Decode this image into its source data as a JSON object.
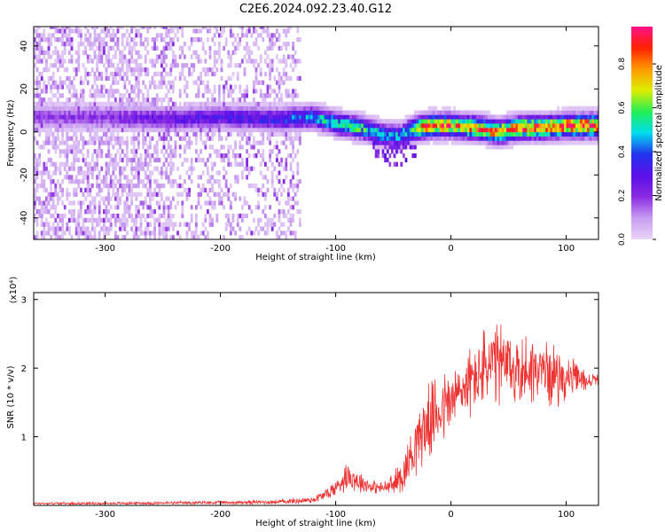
{
  "figure_title": "C2E6.2024.092.23.40.G12",
  "colors": {
    "snr_line": "#ee3333",
    "background": "#ffffff",
    "colormap": [
      "#e9d6f7",
      "#c89cf0",
      "#8a2be2",
      "#5a10e8",
      "#2233ee",
      "#00ddee",
      "#22ee55",
      "#ddee00",
      "#ff9900",
      "#ff2200",
      "#ff1188"
    ]
  },
  "chart_data": [
    {
      "type": "heatmap",
      "title": "C2E6.2024.092.23.40.G12",
      "xlabel": "Height of straight line (km)",
      "ylabel": "Frequency (Hz)",
      "xlim": [
        -362,
        128
      ],
      "ylim": [
        -50,
        49
      ],
      "x_ticks": [
        -300,
        -200,
        -100,
        0,
        100
      ],
      "x_tick_labels": [
        "-300",
        "-200",
        "-100",
        "0",
        "100"
      ],
      "y_ticks": [
        -40,
        -20,
        0,
        20,
        40
      ],
      "y_tick_labels": [
        "-40",
        "-20",
        "0",
        "20",
        "40"
      ],
      "colorbar": {
        "label": "Normalized spectral amplitude",
        "range": [
          0,
          0.97
        ],
        "ticks": [
          0.0,
          0.2,
          0.4,
          0.6,
          0.8
        ],
        "tick_labels": [
          "0.0",
          "0.2",
          "0.4",
          "0.6",
          "0.8"
        ]
      },
      "ridge": {
        "x": [
          -362,
          -300,
          -240,
          -200,
          -150,
          -120,
          -100,
          -80,
          -60,
          -45,
          -35,
          -20,
          0,
          20,
          40,
          60,
          80,
          100,
          128
        ],
        "frequency": [
          6,
          6,
          5,
          6,
          5,
          6,
          3,
          1,
          -2,
          -3,
          0,
          2,
          2,
          1,
          -1,
          1,
          1,
          2,
          2
        ],
        "amplitude": [
          0.18,
          0.2,
          0.28,
          0.3,
          0.35,
          0.45,
          0.5,
          0.55,
          0.45,
          0.45,
          0.6,
          0.85,
          0.8,
          0.8,
          0.8,
          0.85,
          0.85,
          0.88,
          0.95
        ]
      },
      "noise_extent": [
        -362,
        -130
      ]
    },
    {
      "type": "line",
      "xlabel": "Height of straight line (km)",
      "ylabel": "SNR (10 * v/v)",
      "y_multiplier": "(x10⁴)",
      "xlim": [
        -362,
        128
      ],
      "ylim": [
        0,
        3.1
      ],
      "x_ticks": [
        -300,
        -200,
        -100,
        0,
        100
      ],
      "x_tick_labels": [
        "-300",
        "-200",
        "-100",
        "0",
        "100"
      ],
      "y_ticks": [
        1,
        2,
        3
      ],
      "y_tick_labels": [
        "1",
        "2",
        "3"
      ],
      "series": [
        {
          "x": [
            -362,
            -300,
            -200,
            -150,
            -120,
            -110,
            -100,
            -90,
            -80,
            -70,
            -60,
            -50,
            -40,
            -30,
            -20,
            -10,
            0,
            10,
            20,
            30,
            40,
            50,
            60,
            70,
            80,
            90,
            100,
            110,
            120,
            128
          ],
          "values": [
            0.03,
            0.03,
            0.04,
            0.05,
            0.08,
            0.15,
            0.25,
            0.45,
            0.35,
            0.28,
            0.25,
            0.3,
            0.5,
            0.95,
            1.2,
            1.4,
            1.5,
            1.7,
            1.85,
            2.0,
            2.05,
            2.0,
            1.95,
            2.0,
            1.95,
            1.9,
            1.85,
            1.85,
            1.8,
            1.85
          ],
          "spread": [
            0.02,
            0.02,
            0.03,
            0.04,
            0.06,
            0.1,
            0.15,
            0.25,
            0.2,
            0.12,
            0.1,
            0.2,
            0.35,
            0.55,
            0.6,
            0.65,
            0.6,
            0.55,
            0.6,
            0.7,
            0.75,
            0.7,
            0.6,
            0.6,
            0.55,
            0.5,
            0.4,
            0.25,
            0.15,
            0.1
          ]
        }
      ]
    }
  ]
}
